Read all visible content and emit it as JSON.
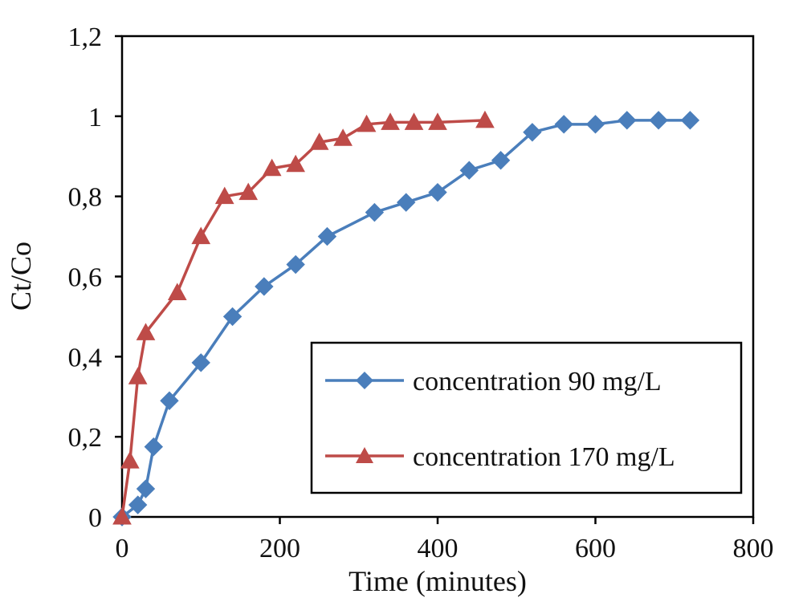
{
  "chart_data": {
    "type": "line",
    "title": "",
    "xlabel": "Time (minutes)",
    "ylabel": "Ct/Co",
    "xlim": [
      0,
      800
    ],
    "ylim": [
      0,
      1.2
    ],
    "x_ticks": [
      "0",
      "200",
      "400",
      "600",
      "800"
    ],
    "y_ticks": [
      "0",
      "0,2",
      "0,4",
      "0,6",
      "0,8",
      "1",
      "1,2"
    ],
    "grid": false,
    "legend_position": "bottom-right",
    "series": [
      {
        "name": "concentration 90 mg/L",
        "color": "#4a7ebb",
        "marker": "diamond",
        "points": [
          [
            0,
            0
          ],
          [
            20,
            0.03
          ],
          [
            30,
            0.07
          ],
          [
            40,
            0.175
          ],
          [
            60,
            0.29
          ],
          [
            100,
            0.385
          ],
          [
            140,
            0.5
          ],
          [
            180,
            0.575
          ],
          [
            220,
            0.63
          ],
          [
            260,
            0.7
          ],
          [
            320,
            0.76
          ],
          [
            360,
            0.785
          ],
          [
            400,
            0.81
          ],
          [
            440,
            0.865
          ],
          [
            480,
            0.89
          ],
          [
            520,
            0.96
          ],
          [
            560,
            0.98
          ],
          [
            600,
            0.98
          ],
          [
            640,
            0.99
          ],
          [
            680,
            0.99
          ],
          [
            720,
            0.99
          ]
        ]
      },
      {
        "name": "concentration 170 mg/L",
        "color": "#be4b48",
        "marker": "triangle",
        "points": [
          [
            0,
            0
          ],
          [
            10,
            0.14
          ],
          [
            20,
            0.35
          ],
          [
            30,
            0.46
          ],
          [
            70,
            0.56
          ],
          [
            100,
            0.7
          ],
          [
            130,
            0.8
          ],
          [
            160,
            0.81
          ],
          [
            190,
            0.87
          ],
          [
            220,
            0.88
          ],
          [
            250,
            0.935
          ],
          [
            280,
            0.945
          ],
          [
            310,
            0.98
          ],
          [
            340,
            0.985
          ],
          [
            370,
            0.985
          ],
          [
            400,
            0.985
          ],
          [
            460,
            0.99
          ]
        ]
      }
    ]
  }
}
